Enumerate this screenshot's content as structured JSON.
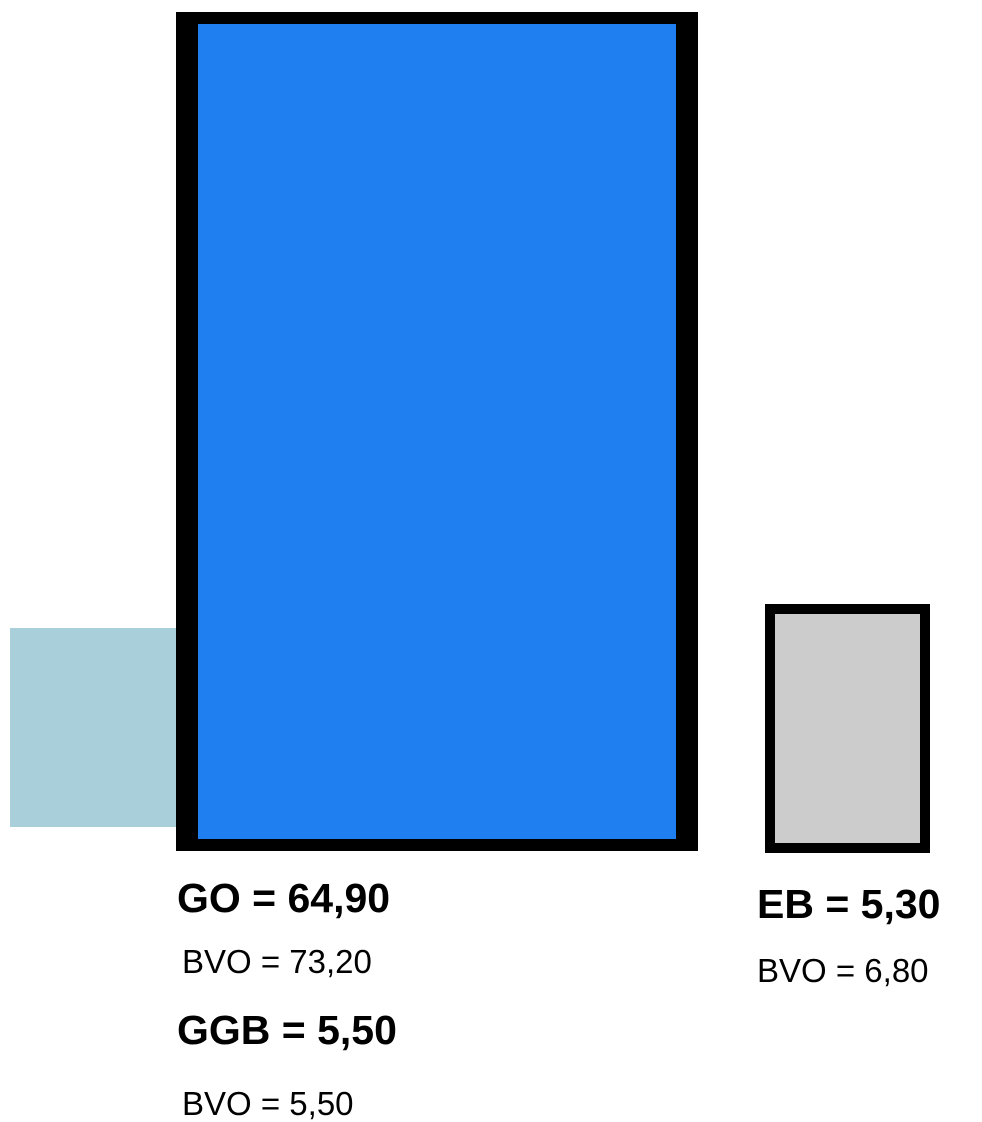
{
  "colors": {
    "go_fill": "#1f7ef0",
    "ggb_fill": "#a9cfdb",
    "eb_fill": "#cccccc",
    "border": "#000000"
  },
  "blocks": {
    "go": {
      "label": "GO = 64,90",
      "bvo": "BVO = 73,20"
    },
    "ggb": {
      "label": "GGB = 5,50",
      "bvo": "BVO = 5,50"
    },
    "eb": {
      "label": "EB = 5,30",
      "bvo": "BVO = 6,80"
    }
  }
}
